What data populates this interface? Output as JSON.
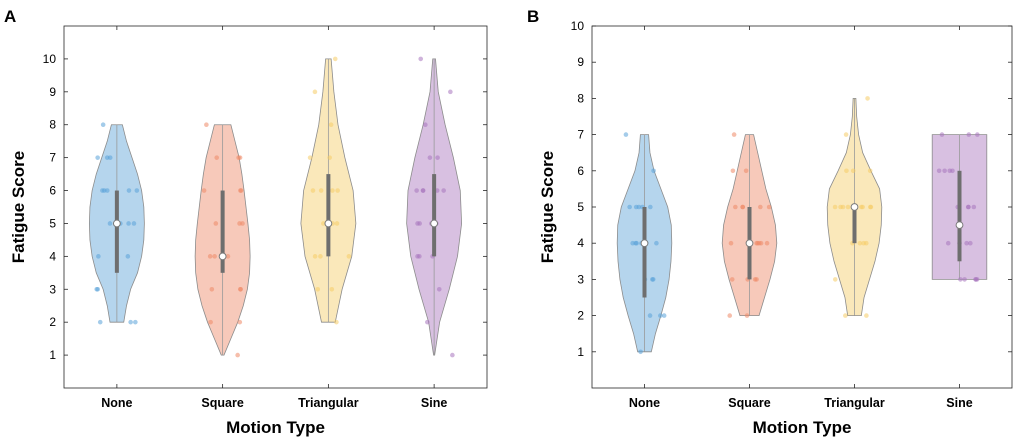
{
  "chart_data": [
    {
      "panel_label": "A",
      "type": "violin",
      "title": "",
      "xlabel": "Motion Type",
      "ylabel": "Fatigue Score",
      "categories": [
        "None",
        "Square",
        "Triangular",
        "Sine"
      ],
      "ylim": [
        0,
        11
      ],
      "yticks": [
        "1",
        "2",
        "3",
        "4",
        "5",
        "6",
        "7",
        "8",
        "9",
        "10"
      ],
      "grid": false,
      "series": [
        {
          "name": "None",
          "color": "#5aa2d8",
          "min": 2,
          "max": 8,
          "median": 5,
          "q1": 3.5,
          "q3": 6,
          "density": [
            [
              2,
              0.25
            ],
            [
              2.5,
              0.35
            ],
            [
              3,
              0.5
            ],
            [
              3.5,
              0.75
            ],
            [
              4,
              0.9
            ],
            [
              4.5,
              0.98
            ],
            [
              5,
              1.0
            ],
            [
              5.5,
              0.98
            ],
            [
              6,
              0.9
            ],
            [
              6.5,
              0.75
            ],
            [
              7,
              0.55
            ],
            [
              7.5,
              0.35
            ],
            [
              8,
              0.2
            ]
          ],
          "points": [
            2,
            2,
            2,
            3,
            3,
            4,
            4,
            5,
            5,
            5,
            5,
            6,
            6,
            6,
            6,
            6,
            7,
            7,
            7,
            8
          ]
        },
        {
          "name": "Square",
          "color": "#ee8866",
          "min": 1,
          "max": 8,
          "median": 4,
          "q1": 3.5,
          "q3": 6,
          "density": [
            [
              1,
              0.05
            ],
            [
              1.5,
              0.3
            ],
            [
              2,
              0.55
            ],
            [
              2.5,
              0.75
            ],
            [
              3,
              0.9
            ],
            [
              3.5,
              0.98
            ],
            [
              4,
              1.0
            ],
            [
              4.5,
              0.98
            ],
            [
              5,
              0.92
            ],
            [
              5.5,
              0.85
            ],
            [
              6,
              0.78
            ],
            [
              6.5,
              0.7
            ],
            [
              7,
              0.6
            ],
            [
              7.5,
              0.45
            ],
            [
              8,
              0.3
            ]
          ],
          "points": [
            1,
            2,
            2,
            3,
            3,
            3,
            4,
            4,
            4,
            4,
            5,
            5,
            5,
            6,
            6,
            6,
            7,
            7,
            7,
            8
          ]
        },
        {
          "name": "Triangular",
          "color": "#f5cc66",
          "min": 2,
          "max": 10,
          "median": 5,
          "q1": 4,
          "q3": 6.5,
          "density": [
            [
              2,
              0.25
            ],
            [
              3,
              0.5
            ],
            [
              4,
              0.85
            ],
            [
              5,
              1.0
            ],
            [
              6,
              0.9
            ],
            [
              7,
              0.6
            ],
            [
              8,
              0.35
            ],
            [
              9,
              0.2
            ],
            [
              10,
              0.1
            ]
          ],
          "points": [
            2,
            3,
            3,
            4,
            4,
            4,
            5,
            5,
            5,
            5,
            5,
            6,
            6,
            6,
            6,
            7,
            7,
            8,
            9,
            10
          ]
        },
        {
          "name": "Sine",
          "color": "#a874bd",
          "min": 1,
          "max": 10,
          "median": 5,
          "q1": 4,
          "q3": 6.5,
          "density": [
            [
              1,
              0.02
            ],
            [
              2,
              0.2
            ],
            [
              3,
              0.55
            ],
            [
              4,
              0.85
            ],
            [
              5,
              1.0
            ],
            [
              6,
              0.95
            ],
            [
              7,
              0.7
            ],
            [
              8,
              0.4
            ],
            [
              9,
              0.15
            ],
            [
              10,
              0.05
            ]
          ],
          "points": [
            1,
            2,
            3,
            4,
            4,
            4,
            5,
            5,
            5,
            5,
            6,
            6,
            6,
            6,
            6,
            7,
            7,
            8,
            9,
            10
          ]
        }
      ]
    },
    {
      "panel_label": "B",
      "type": "violin",
      "title": "",
      "xlabel": "Motion Type",
      "ylabel": "Fatigue Score",
      "categories": [
        "None",
        "Square",
        "Triangular",
        "Sine"
      ],
      "ylim": [
        0,
        10
      ],
      "yticks": [
        "1",
        "2",
        "3",
        "4",
        "5",
        "6",
        "7",
        "8",
        "9",
        "10"
      ],
      "grid": false,
      "series": [
        {
          "name": "None",
          "color": "#5aa2d8",
          "min": 1,
          "max": 7,
          "median": 4,
          "q1": 2.5,
          "q3": 5,
          "density": [
            [
              1,
              0.25
            ],
            [
              1.5,
              0.4
            ],
            [
              2,
              0.6
            ],
            [
              2.5,
              0.78
            ],
            [
              3,
              0.9
            ],
            [
              3.5,
              0.97
            ],
            [
              4,
              1.0
            ],
            [
              4.5,
              0.98
            ],
            [
              5,
              0.85
            ],
            [
              5.5,
              0.6
            ],
            [
              6,
              0.35
            ],
            [
              6.5,
              0.2
            ],
            [
              7,
              0.15
            ]
          ],
          "points": [
            1,
            2,
            2,
            2,
            3,
            3,
            3,
            4,
            4,
            4,
            4,
            4,
            4,
            5,
            5,
            5,
            5,
            5,
            6,
            7
          ]
        },
        {
          "name": "Square",
          "color": "#ee8866",
          "min": 2,
          "max": 7,
          "median": 4,
          "q1": 3,
          "q3": 5,
          "density": [
            [
              2,
              0.35
            ],
            [
              2.5,
              0.55
            ],
            [
              3,
              0.75
            ],
            [
              3.5,
              0.92
            ],
            [
              4,
              1.0
            ],
            [
              4.5,
              0.95
            ],
            [
              5,
              0.8
            ],
            [
              5.5,
              0.6
            ],
            [
              6,
              0.45
            ],
            [
              6.5,
              0.3
            ],
            [
              7,
              0.15
            ]
          ],
          "points": [
            2,
            2,
            3,
            3,
            3,
            3,
            4,
            4,
            4,
            4,
            4,
            4,
            5,
            5,
            5,
            5,
            5,
            6,
            6,
            7
          ]
        },
        {
          "name": "Triangular",
          "color": "#f5cc66",
          "min": 2,
          "max": 8,
          "median": 5,
          "q1": 4,
          "q3": 5,
          "density": [
            [
              2,
              0.25
            ],
            [
              2.5,
              0.35
            ],
            [
              3,
              0.55
            ],
            [
              3.5,
              0.75
            ],
            [
              4,
              0.9
            ],
            [
              4.5,
              0.98
            ],
            [
              5,
              1.0
            ],
            [
              5.5,
              0.92
            ],
            [
              6,
              0.6
            ],
            [
              6.5,
              0.3
            ],
            [
              7,
              0.15
            ],
            [
              7.5,
              0.08
            ],
            [
              8,
              0.05
            ]
          ],
          "points": [
            2,
            2,
            3,
            4,
            4,
            4,
            5,
            5,
            5,
            5,
            5,
            5,
            5,
            5,
            6,
            6,
            6,
            7,
            8,
            4
          ]
        },
        {
          "name": "Sine",
          "color": "#a874bd",
          "min": 3,
          "max": 7,
          "median": 4.5,
          "q1": 3.5,
          "q3": 6,
          "density": [
            [
              3,
              1.0
            ],
            [
              3.5,
              1.0
            ],
            [
              4,
              1.0
            ],
            [
              4.5,
              1.0
            ],
            [
              5,
              1.0
            ],
            [
              5.5,
              1.0
            ],
            [
              6,
              1.0
            ],
            [
              6.5,
              1.0
            ],
            [
              7,
              1.0
            ]
          ],
          "points": [
            3,
            3,
            3,
            3,
            3,
            4,
            4,
            4,
            4,
            5,
            5,
            5,
            5,
            6,
            6,
            6,
            6,
            7,
            7,
            7
          ]
        }
      ]
    }
  ]
}
